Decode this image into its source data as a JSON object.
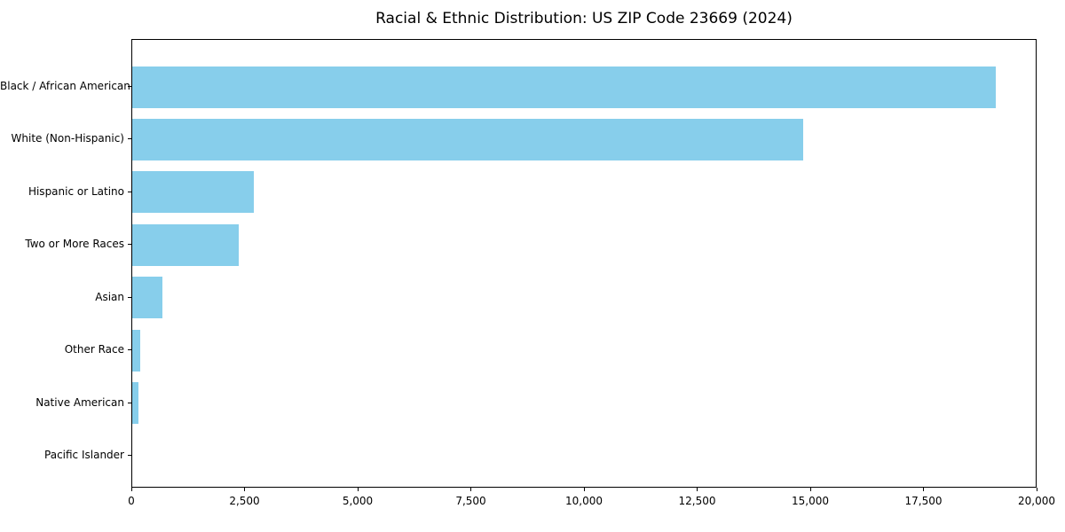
{
  "page": {
    "background_color": "#ffffff",
    "text_color": "#000000"
  },
  "chart_data": {
    "type": "bar",
    "orientation": "horizontal",
    "title": "Racial & Ethnic Distribution: US ZIP Code 23669 (2024)",
    "xlabel": "",
    "ylabel": "",
    "categories": [
      "Black / African American",
      "White (Non-Hispanic)",
      "Hispanic or Latino",
      "Two or More Races",
      "Asian",
      "Other Race",
      "Native American",
      "Pacific Islander"
    ],
    "values": [
      19080,
      14820,
      2690,
      2350,
      670,
      175,
      140,
      0
    ],
    "xlim": [
      0,
      20000
    ],
    "x_ticks": [
      0,
      2500,
      5000,
      7500,
      10000,
      12500,
      15000,
      17500,
      20000
    ],
    "x_tick_labels": [
      "0",
      "2,500",
      "5,000",
      "7,500",
      "10,000",
      "12,500",
      "15,000",
      "17,500",
      "20,000"
    ],
    "bar_color": "#87CEEB",
    "spine_color": "#000000",
    "grid": false,
    "legend": null
  }
}
